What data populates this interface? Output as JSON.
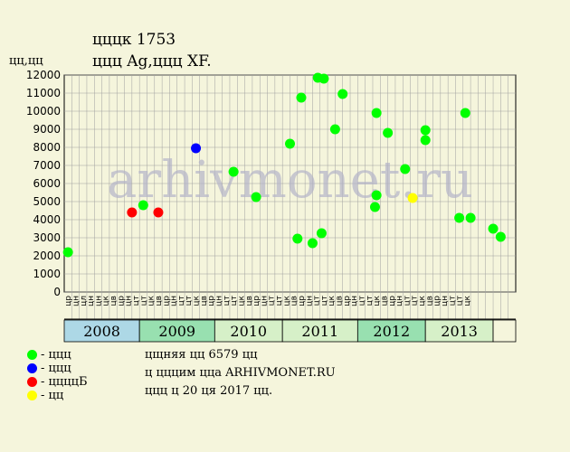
{
  "header": {
    "title": "цццк 1753",
    "subtitle": "ццц Ag,ццц XF."
  },
  "colors": {
    "background": "#f5f5dc",
    "plot_bg": "#f5f5dc",
    "grid": "#a0a0a0",
    "green": "#00ff00",
    "blue": "#0000ff",
    "red": "#ff0000",
    "yellow": "#ffff00",
    "year_band": "#add8e6",
    "year_band_alt": "#98e0b0"
  },
  "legend": [
    {
      "label": "- ццц",
      "color": "#00ff00"
    },
    {
      "label": "- ццц",
      "color": "#0000ff"
    },
    {
      "label": "- ццццБ",
      "color": "#ff0000"
    },
    {
      "label": "- цц",
      "color": "#ffff00"
    }
  ],
  "info": {
    "line1": "цщняя цц 6579 цц",
    "line2": "ц цццим цца ARHIVMONET.RU",
    "line3": "ццц ц 20 ця 2017 цц."
  },
  "watermark": "arhivmonet.ru",
  "chart_data": {
    "type": "scatter",
    "ylabel": "цц,цц",
    "ylim": [
      0,
      12000
    ],
    "yticks": [
      0,
      1000,
      2000,
      3000,
      4000,
      5000,
      6000,
      7000,
      8000,
      9000,
      10000,
      11000,
      12000
    ],
    "grid": true,
    "month_labels": [
      "цр",
      "цн",
      "цл",
      "цн",
      "цн",
      "цк",
      "цв",
      "цр",
      "цн",
      "цт",
      "цт",
      "цк",
      "цв",
      "цр",
      "цн",
      "цт",
      "цт",
      "цк",
      "цв",
      "цр",
      "цн",
      "цт",
      "цт",
      "цк",
      "цв",
      "цр",
      "цн",
      "цт",
      "цт",
      "цк",
      "цв",
      "цр",
      "цн",
      "цт",
      "цт",
      "цк",
      "цв",
      "цр",
      "цн",
      "цт",
      "цт",
      "цк",
      "цв",
      "цр",
      "цн",
      "цт",
      "цт",
      "цк",
      "цв",
      "цр",
      "цн",
      "цт",
      "цт",
      "цк"
    ],
    "years": [
      {
        "label": "2008",
        "start": 0,
        "end": 10,
        "color": "#add8e6"
      },
      {
        "label": "2009",
        "start": 10,
        "end": 20,
        "color": "#98e0b0"
      },
      {
        "label": "2010",
        "start": 20,
        "end": 29,
        "color": "#d6f0c8"
      },
      {
        "label": "2011",
        "start": 29,
        "end": 39,
        "color": "#d6f0c8"
      },
      {
        "label": "2012",
        "start": 39,
        "end": 48,
        "color": "#98e0b0"
      },
      {
        "label": "2013",
        "start": 48,
        "end": 57,
        "color": "#d6f0c8"
      }
    ],
    "n_slots": 60,
    "points": [
      {
        "x": 0.5,
        "y": 2200,
        "color": "#00ff00"
      },
      {
        "x": 9.0,
        "y": 4400,
        "color": "#ff0000"
      },
      {
        "x": 10.5,
        "y": 4800,
        "color": "#00ff00"
      },
      {
        "x": 12.5,
        "y": 4400,
        "color": "#ff0000"
      },
      {
        "x": 17.5,
        "y": 7950,
        "color": "#0000ff"
      },
      {
        "x": 22.5,
        "y": 6650,
        "color": "#00ff00"
      },
      {
        "x": 25.5,
        "y": 5250,
        "color": "#00ff00"
      },
      {
        "x": 30.0,
        "y": 8200,
        "color": "#00ff00"
      },
      {
        "x": 31.0,
        "y": 2950,
        "color": "#00ff00"
      },
      {
        "x": 31.5,
        "y": 10750,
        "color": "#00ff00"
      },
      {
        "x": 33.0,
        "y": 2700,
        "color": "#00ff00"
      },
      {
        "x": 33.7,
        "y": 11850,
        "color": "#00ff00"
      },
      {
        "x": 34.2,
        "y": 3250,
        "color": "#00ff00"
      },
      {
        "x": 34.5,
        "y": 11800,
        "color": "#00ff00"
      },
      {
        "x": 36.0,
        "y": 9000,
        "color": "#00ff00"
      },
      {
        "x": 37.0,
        "y": 10950,
        "color": "#00ff00"
      },
      {
        "x": 41.3,
        "y": 4700,
        "color": "#00ff00"
      },
      {
        "x": 41.5,
        "y": 5350,
        "color": "#00ff00"
      },
      {
        "x": 41.5,
        "y": 9900,
        "color": "#00ff00"
      },
      {
        "x": 43.0,
        "y": 8800,
        "color": "#00ff00"
      },
      {
        "x": 45.3,
        "y": 6800,
        "color": "#00ff00"
      },
      {
        "x": 46.3,
        "y": 5200,
        "color": "#ffff00"
      },
      {
        "x": 48.0,
        "y": 8400,
        "color": "#00ff00"
      },
      {
        "x": 48.0,
        "y": 8950,
        "color": "#00ff00"
      },
      {
        "x": 52.5,
        "y": 4100,
        "color": "#00ff00"
      },
      {
        "x": 53.3,
        "y": 9900,
        "color": "#00ff00"
      },
      {
        "x": 54.0,
        "y": 4100,
        "color": "#00ff00"
      },
      {
        "x": 57.0,
        "y": 3500,
        "color": "#00ff00"
      },
      {
        "x": 58.0,
        "y": 3050,
        "color": "#00ff00"
      }
    ]
  }
}
